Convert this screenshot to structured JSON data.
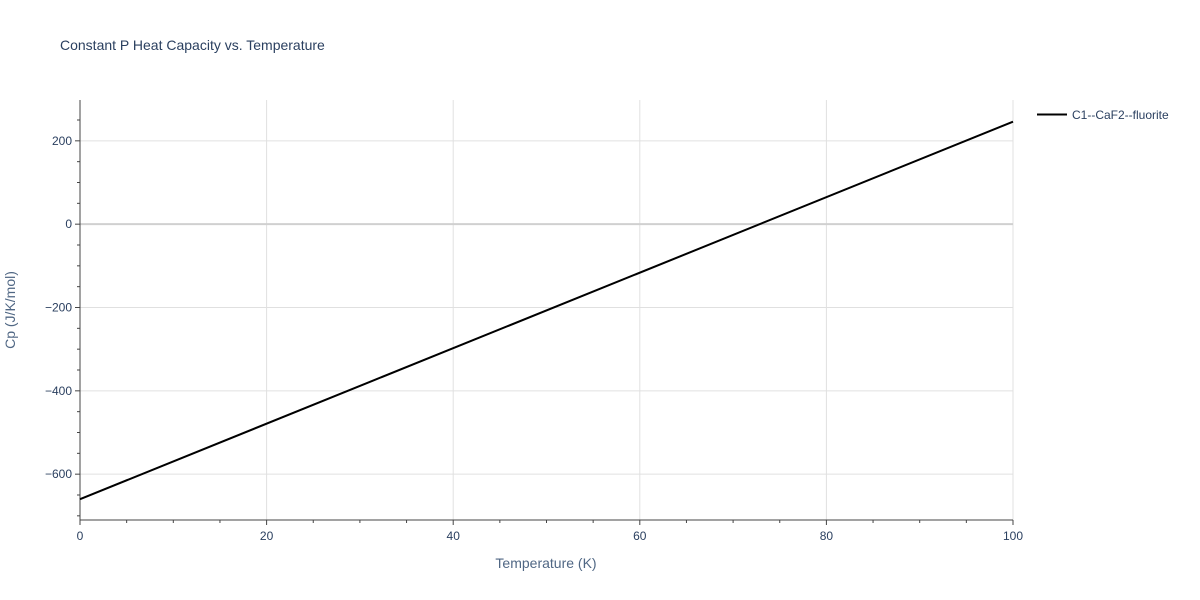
{
  "chart_data": {
    "type": "line",
    "title": "Constant P Heat Capacity vs. Temperature",
    "xlabel": "Temperature (K)",
    "ylabel": "Cp (J/K/mol)",
    "xlim": [
      0,
      100
    ],
    "ylim": [
      -710,
      298
    ],
    "xticks": [
      0,
      20,
      40,
      60,
      80,
      100
    ],
    "xtick_labels": [
      "0",
      "20",
      "40",
      "60",
      "80",
      "100"
    ],
    "yticks": [
      -600,
      -400,
      -200,
      0,
      200
    ],
    "ytick_labels": [
      "−600",
      "−400",
      "−200",
      "0",
      "200"
    ],
    "grid": true,
    "legend_position": "top-right",
    "series": [
      {
        "name": "C1--CaF2--fluorite",
        "color": "#000000",
        "x": [
          0,
          100
        ],
        "y": [
          -660,
          246
        ]
      }
    ]
  }
}
